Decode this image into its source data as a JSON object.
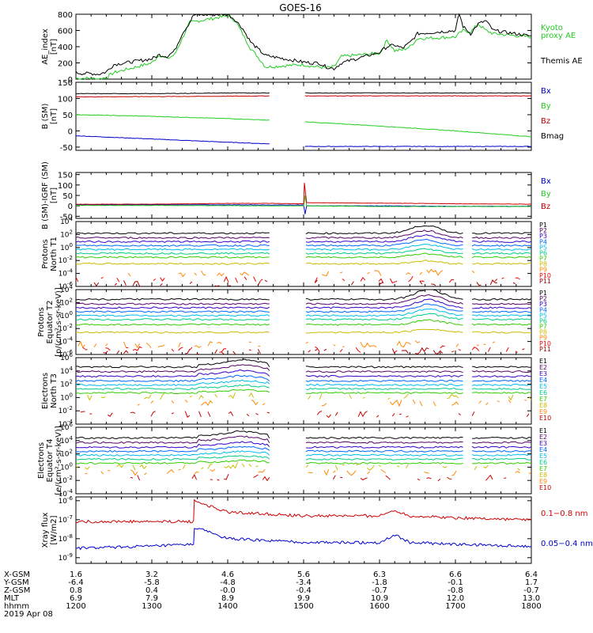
{
  "title": "GOES-16",
  "footer": {
    "row_labels": [
      "X-GSM",
      "Y-GSM",
      "Z-GSM",
      "MLT",
      "hhmm",
      "2019 Apr 08"
    ],
    "columns": [
      [
        "1.6",
        "-6.4",
        "0.8",
        "6.9",
        "1200"
      ],
      [
        "3.2",
        "-5.8",
        "0.4",
        "7.9",
        "1300"
      ],
      [
        "4.6",
        "-4.8",
        "-0.0",
        "8.9",
        "1400"
      ],
      [
        "5.6",
        "-3.4",
        "-0.4",
        "9.9",
        "1500"
      ],
      [
        "6.3",
        "-1.8",
        "-0.7",
        "10.9",
        "1600"
      ],
      [
        "6.6",
        "-0.1",
        "-0.8",
        "12.0",
        "1700"
      ],
      [
        "6.4",
        "1.7",
        "-0.7",
        "13.0",
        "1800"
      ]
    ]
  },
  "colors": {
    "black": "#000000",
    "red": "#cc0000",
    "green": "#22cc22",
    "blue": "#0000cc",
    "kyoto": "#22cc22"
  },
  "chart_data": [
    {
      "type": "line",
      "id": "ae",
      "ylabel": [
        "AE_index",
        "[nT]"
      ],
      "ylim": [
        0,
        800
      ],
      "yticks": [
        0,
        200,
        400,
        600,
        800
      ],
      "xlim": [
        1200,
        1800
      ],
      "series": [
        {
          "name": "Kyoto proxy AE",
          "color": "#22cc22",
          "x": [
            1200,
            1210,
            1220,
            1230,
            1240,
            1250,
            1300,
            1310,
            1320,
            1330,
            1340,
            1350,
            1400,
            1410,
            1420,
            1430,
            1440,
            1450,
            1500,
            1510,
            1520,
            1530,
            1540,
            1550,
            1600,
            1610,
            1620,
            1630,
            1640,
            1650,
            1700,
            1710,
            1720,
            1730,
            1740,
            1750,
            1800
          ],
          "y": [
            10,
            10,
            10,
            0,
            20,
            80,
            200,
            300,
            250,
            300,
            500,
            700,
            780,
            720,
            550,
            380,
            270,
            150,
            180,
            160,
            150,
            140,
            150,
            280,
            320,
            480,
            350,
            360,
            400,
            500,
            520,
            600,
            580,
            680,
            600,
            560,
            520
          ]
        },
        {
          "name": "Themis AE",
          "color": "#000000",
          "x": [
            1200,
            1210,
            1220,
            1230,
            1240,
            1250,
            1300,
            1310,
            1320,
            1330,
            1340,
            1350,
            1355,
            1400,
            1410,
            1420,
            1430,
            1440,
            1450,
            1500,
            1510,
            1520,
            1530,
            1540,
            1550,
            1600,
            1610,
            1620,
            1630,
            1640,
            1650,
            1700,
            1705,
            1710,
            1720,
            1730,
            1740,
            1750,
            1800
          ],
          "y": [
            80,
            70,
            70,
            60,
            90,
            180,
            250,
            300,
            280,
            350,
            560,
            700,
            790,
            800,
            730,
            620,
            460,
            370,
            290,
            210,
            200,
            200,
            150,
            130,
            200,
            330,
            400,
            420,
            380,
            450,
            560,
            600,
            810,
            650,
            560,
            680,
            720,
            600,
            530
          ]
        }
      ],
      "legend": [
        {
          "text": "Kyoto",
          "color": "#22cc22"
        },
        {
          "text": "proxy AE",
          "color": "#22cc22"
        },
        {
          "text": "Themis AE",
          "color": "#000000"
        }
      ]
    },
    {
      "type": "line",
      "id": "bsm",
      "ylabel": [
        "B (SM)",
        "[nT]"
      ],
      "ylim": [
        -60,
        150
      ],
      "yticks": [
        -50,
        0,
        50,
        100,
        150
      ],
      "xlim": [
        1200,
        1800
      ],
      "gaps": [
        [
          1455,
          1502
        ]
      ],
      "series": [
        {
          "name": "Bx",
          "color": "#0000cc",
          "x": [
            1200,
            1300,
            1400,
            1455,
            1502,
            1600,
            1700,
            1800
          ],
          "y": [
            -15,
            -25,
            -35,
            -40,
            -48,
            -48,
            -48,
            -48
          ]
        },
        {
          "name": "By",
          "color": "#22cc22",
          "x": [
            1200,
            1300,
            1400,
            1455,
            1502,
            1600,
            1700,
            1800
          ],
          "y": [
            50,
            45,
            38,
            33,
            28,
            15,
            0,
            -18
          ]
        },
        {
          "name": "Bz",
          "color": "#cc0000",
          "x": [
            1200,
            1300,
            1400,
            1455,
            1502,
            1600,
            1700,
            1800
          ],
          "y": [
            105,
            106,
            107,
            108,
            108,
            108,
            108,
            108
          ]
        },
        {
          "name": "Bmag",
          "color": "#000000",
          "x": [
            1200,
            1300,
            1400,
            1455,
            1502,
            1600,
            1700,
            1800
          ],
          "y": [
            115,
            115,
            117,
            117,
            117,
            117,
            117,
            117
          ]
        }
      ],
      "legend": [
        {
          "text": "Bx",
          "color": "#0000cc"
        },
        {
          "text": "By",
          "color": "#22cc22"
        },
        {
          "text": "Bz",
          "color": "#cc0000"
        },
        {
          "text": "Bmag",
          "color": "#000000"
        }
      ]
    },
    {
      "type": "line",
      "id": "bigrf",
      "ylabel": [
        "B (SM)-IGRF (SM)",
        "[nT]"
      ],
      "ylim": [
        -60,
        160
      ],
      "yticks": [
        -50,
        0,
        50,
        100,
        150
      ],
      "xlim": [
        1200,
        1800
      ],
      "series": [
        {
          "name": "Bx",
          "color": "#0000cc",
          "x": [
            1200,
            1300,
            1400,
            1455,
            1500,
            1502,
            1504,
            1600,
            1700,
            1800
          ],
          "y": [
            5,
            5,
            5,
            4,
            4,
            -40,
            0,
            0,
            -2,
            -2
          ]
        },
        {
          "name": "By",
          "color": "#22cc22",
          "x": [
            1200,
            1300,
            1400,
            1455,
            1500,
            1502,
            1504,
            1600,
            1700,
            1800
          ],
          "y": [
            2,
            2,
            1,
            0,
            0,
            50,
            0,
            -3,
            -3,
            -3
          ]
        },
        {
          "name": "Bz",
          "color": "#cc0000",
          "x": [
            1200,
            1300,
            1400,
            1455,
            1500,
            1501,
            1504,
            1600,
            1700,
            1800
          ],
          "y": [
            8,
            8,
            12,
            12,
            10,
            110,
            15,
            13,
            10,
            8
          ]
        }
      ],
      "legend": [
        {
          "text": "Bx",
          "color": "#0000cc"
        },
        {
          "text": "By",
          "color": "#22cc22"
        },
        {
          "text": "Bz",
          "color": "#cc0000"
        }
      ]
    },
    {
      "type": "line",
      "id": "pn",
      "ylabel": [
        "Protons",
        "North T1"
      ],
      "ylim_log": [
        -6,
        4
      ],
      "yticks_log": [
        -6,
        -4,
        -2,
        0,
        2,
        4
      ],
      "xlim": [
        1200,
        1800
      ],
      "gaps": [
        [
          1455,
          1502
        ],
        [
          1712,
          1722
        ]
      ],
      "channels": [
        "P1",
        "P2",
        "P3",
        "P4",
        "P5",
        "P6",
        "P7",
        "P8",
        "P9",
        "P10",
        "P11"
      ],
      "channel_colors": [
        "#000000",
        "#550066",
        "#3300cc",
        "#0066ff",
        "#00bbee",
        "#00cc88",
        "#33cc00",
        "#ccbb00",
        "#ff8800",
        "#ee0000",
        "#aa0000"
      ],
      "levels": [
        2.2,
        1.5,
        0.9,
        0.3,
        -0.3,
        -0.9,
        -1.5,
        -2.5,
        -4.0,
        -5.0,
        -5.5
      ],
      "bump": {
        "center": 1660,
        "amp": 1.2
      }
    },
    {
      "type": "line",
      "id": "pe",
      "ylabel": [
        "Protons",
        "Equator T2",
        "[p/(cm²-s-sr-keV)]"
      ],
      "ylim_log": [
        -6,
        4
      ],
      "yticks_log": [
        -6,
        -4,
        -2,
        0,
        2,
        4
      ],
      "xlim": [
        1200,
        1800
      ],
      "gaps": [
        [
          1455,
          1502
        ],
        [
          1712,
          1722
        ]
      ],
      "channels": [
        "P1",
        "P2",
        "P3",
        "P4",
        "P5",
        "P6",
        "P7",
        "P8",
        "P9",
        "P10",
        "P11"
      ],
      "channel_colors": [
        "#000000",
        "#550066",
        "#3300cc",
        "#0066ff",
        "#00bbee",
        "#00cc88",
        "#33cc00",
        "#ccbb00",
        "#ff8800",
        "#ee0000",
        "#aa0000"
      ],
      "levels": [
        2.5,
        1.8,
        1.2,
        0.6,
        0.0,
        -0.6,
        -1.4,
        -2.6,
        -4.5,
        -5.2,
        -5.6
      ],
      "bump": {
        "center": 1665,
        "amp": 1.5
      }
    },
    {
      "type": "line",
      "id": "en",
      "ylabel": [
        "Electrons",
        "North T3"
      ],
      "ylim_log": [
        -4,
        6
      ],
      "yticks_log": [
        -4,
        -2,
        0,
        2,
        4,
        6
      ],
      "xlim": [
        1200,
        1800
      ],
      "gaps": [
        [
          1455,
          1502
        ],
        [
          1712,
          1722
        ]
      ],
      "channels": [
        "E1",
        "E2",
        "E3",
        "E4",
        "E5",
        "E6",
        "E7",
        "E8",
        "E9",
        "E10"
      ],
      "channel_colors": [
        "#000000",
        "#550066",
        "#3300cc",
        "#0066ff",
        "#00bbee",
        "#00cc88",
        "#33cc00",
        "#ccbb00",
        "#ff8800",
        "#cc0000"
      ],
      "levels": [
        4.6,
        3.9,
        3.2,
        2.5,
        1.9,
        1.3,
        0.7,
        0.1,
        -0.8,
        -2.5
      ],
      "bump": {
        "center": 1420,
        "amp": 0.7
      }
    },
    {
      "type": "line",
      "id": "ee",
      "ylabel": [
        "Electrons",
        "Equator T4",
        "[e/(cm²-s-sr-keV)]"
      ],
      "ylim_log": [
        -4,
        6
      ],
      "yticks_log": [
        -4,
        -2,
        0,
        2,
        4,
        6
      ],
      "xlim": [
        1200,
        1800
      ],
      "gaps": [
        [
          1455,
          1502
        ],
        [
          1712,
          1722
        ]
      ],
      "channels": [
        "E1",
        "E2",
        "E3",
        "E4",
        "E5",
        "E6",
        "E7",
        "E8",
        "E9",
        "E10"
      ],
      "channel_colors": [
        "#000000",
        "#550066",
        "#3300cc",
        "#0066ff",
        "#00bbee",
        "#00cc88",
        "#33cc00",
        "#ccbb00",
        "#ff8800",
        "#cc0000"
      ],
      "levels": [
        4.4,
        3.7,
        3.0,
        2.4,
        1.8,
        1.2,
        0.6,
        0.0,
        -0.8,
        -1.6
      ],
      "bump": {
        "center": 1420,
        "amp": 0.6
      }
    },
    {
      "type": "line",
      "id": "xray",
      "ylabel": [
        "Xray flux",
        "[W/m2]"
      ],
      "ylim_log": [
        -9.3,
        -5.8
      ],
      "yticks_log": [
        -9,
        -8,
        -7,
        -6
      ],
      "xlim": [
        1200,
        1800
      ],
      "series": [
        {
          "name": "0.1–0.8 nm",
          "color": "#cc0000",
          "x": [
            1200,
            1300,
            1355,
            1356,
            1400,
            1500,
            1600,
            1620,
            1640,
            1700,
            1800
          ],
          "y": [
            -7.1,
            -7.1,
            -7.1,
            -6.0,
            -6.6,
            -6.8,
            -6.8,
            -6.5,
            -6.8,
            -6.9,
            -7.0
          ]
        },
        {
          "name": "0.05–0.4 nm",
          "color": "#0000cc",
          "x": [
            1200,
            1300,
            1355,
            1356,
            1400,
            1500,
            1600,
            1620,
            1640,
            1700,
            1800
          ],
          "y": [
            -8.5,
            -8.4,
            -8.3,
            -7.4,
            -8.0,
            -8.2,
            -8.2,
            -7.8,
            -8.2,
            -8.3,
            -8.4
          ]
        }
      ],
      "legend": [
        {
          "text": "0.1−0.8 nm",
          "color": "#cc0000"
        },
        {
          "text": "0.05−0.4 nm",
          "color": "#0000cc"
        }
      ]
    }
  ]
}
